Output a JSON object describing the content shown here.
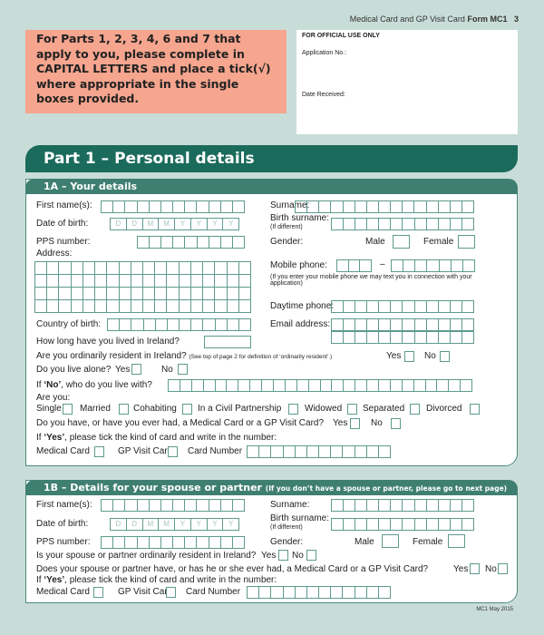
{
  "header": {
    "prefix": "Medical Card and GP Visit Card",
    "form": "Form MC1",
    "page": "3"
  },
  "instructions": "For Parts 1, 2, 3, 4, 6 and 7 that apply to you, please complete in CAPITAL LETTERS and place a tick(√) where appropriate in the single boxes provided.",
  "official": {
    "title": "FOR OFFICIAL USE ONLY",
    "application_no": "Application No.:",
    "date_received": "Date Received:"
  },
  "part1": {
    "title": "Part 1 – Personal details"
  },
  "s1a": {
    "title": "1A – Your details",
    "first_name": "First name(s):",
    "surname": "Surname:",
    "dob": "Date of birth:",
    "dob_placeholder": [
      "D",
      "D",
      "M",
      "M",
      "Y",
      "Y",
      "Y",
      "Y"
    ],
    "birth_surname": "Birth surname:",
    "if_different": "(If different)",
    "pps": "PPS number:",
    "gender": "Gender:",
    "male": "Male",
    "female": "Female",
    "address": "Address:",
    "mobile": "Mobile phone:",
    "mobile_dash": "–",
    "mobile_note": "(If you enter your mobile phone we may text you in connection with your application)",
    "daytime": "Daytime phone:",
    "country": "Country of birth:",
    "email": "Email address:",
    "how_long": "How long have you lived in Ireland?",
    "resident_q": "Are you ordinarily resident in Ireland?",
    "resident_note": "(See top of page 2 for definition of ‘ordinarily resident’.)",
    "yes": "Yes",
    "no": "No",
    "alone_q": "Do you live alone?",
    "if_no_pre": "If ",
    "if_no_bold": "‘No’",
    "if_no_post": ", who do you live with?",
    "are_you": "Are you:",
    "statuses": [
      "Single",
      "Married",
      "Cohabiting",
      "In a Civil Partnership",
      "Widowed",
      "Separated",
      "Divorced"
    ],
    "card_q": "Do you have, or have you ever had, a Medical Card or a GP Visit Card?",
    "if_yes_pre": "If ",
    "if_yes_bold": "‘Yes’",
    "if_yes_post": ", please tick the kind of card and write in the number:",
    "medical_card": "Medical Card",
    "gp_card": "GP Visit Card",
    "card_number": "Card Number"
  },
  "s1b": {
    "title": "1B – Details for your spouse or partner",
    "title_note": "(If you don’t have a spouse or partner, please go to next page)",
    "resident_q": "Is your spouse or partner ordinarily resident in Ireland?",
    "card_q": "Does your spouse or partner have, or has he or she ever had, a Medical Card or a GP Visit Card?"
  },
  "footer": "MC1 May 2015"
}
